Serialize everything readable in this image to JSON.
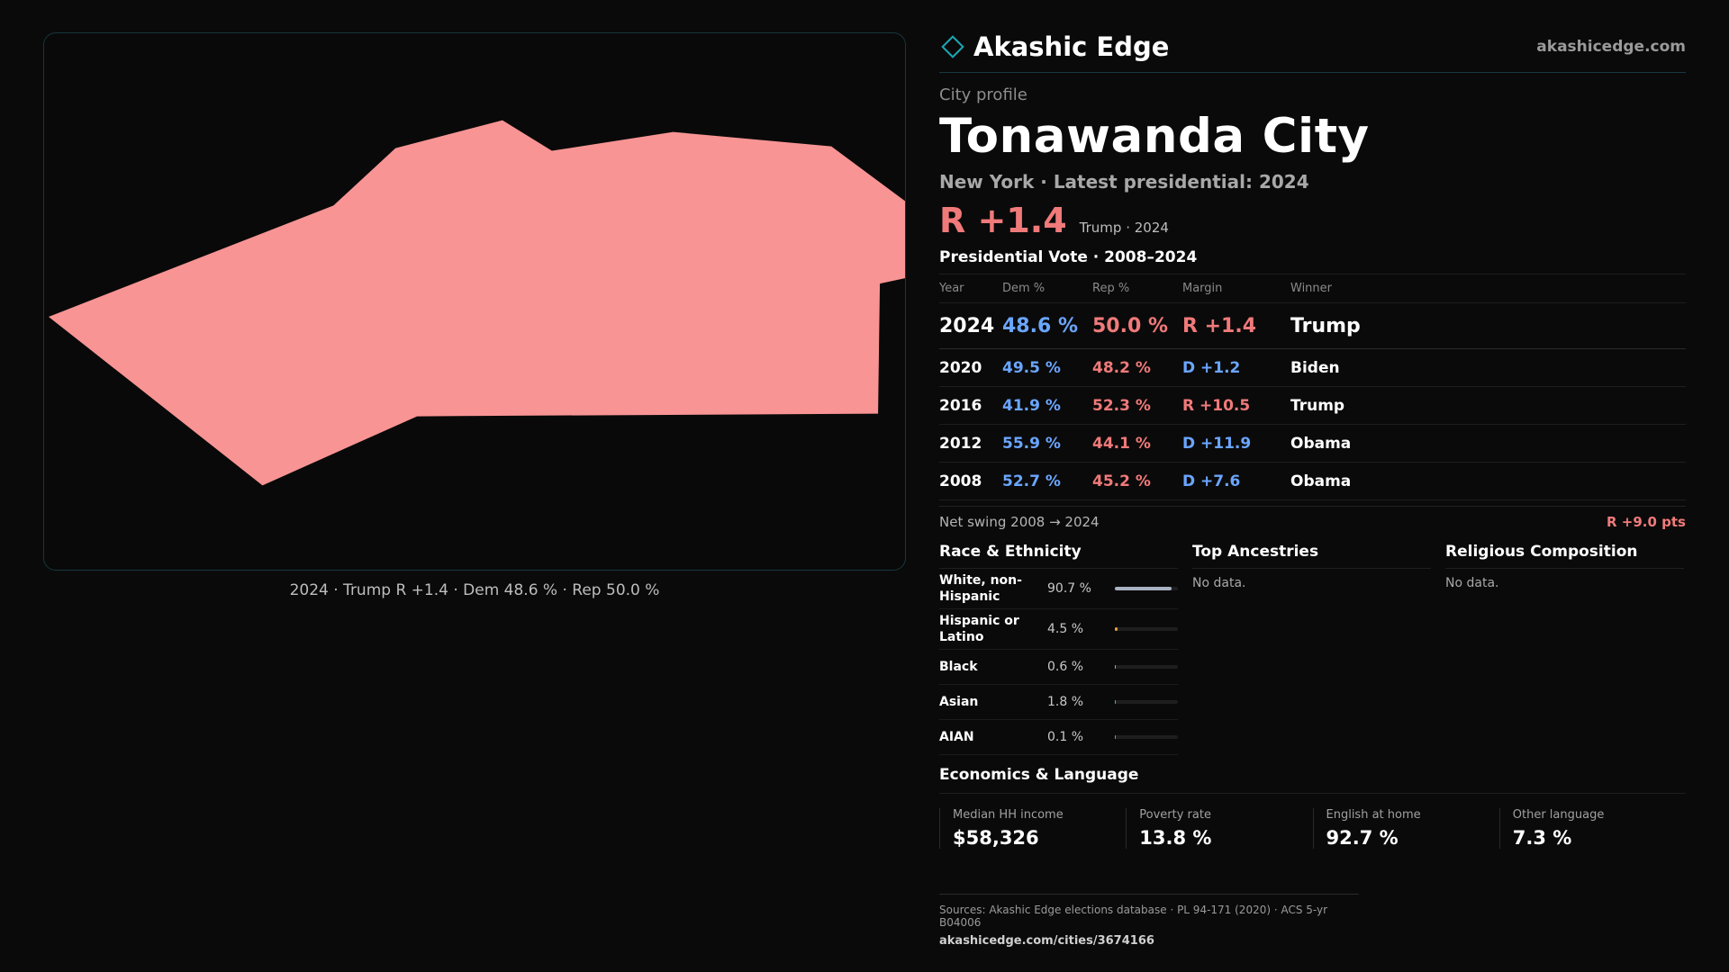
{
  "brand": {
    "name": "Akashic Edge",
    "site": "akashicedge.com",
    "accent": "#1aa8b5"
  },
  "profile": {
    "kicker": "City profile",
    "title": "Tonawanda City",
    "subtitle": "New York · Latest presidential: 2024",
    "headline_margin": "R +1.4",
    "headline_meta": "Trump · 2024"
  },
  "map": {
    "caption": "2024 · Trump R +1.4 · Dem 48.6 % · Rep 50.0 %",
    "fill_color": "#f99494"
  },
  "votes": {
    "title": "Presidential Vote · 2008–2024",
    "headers": [
      "Year",
      "Dem %",
      "Rep %",
      "Margin",
      "Winner"
    ],
    "rows": [
      {
        "year": "2024",
        "dem": "48.6 %",
        "rep": "50.0 %",
        "margin": "R +1.4",
        "margin_party": "rep",
        "winner": "Trump"
      },
      {
        "year": "2020",
        "dem": "49.5 %",
        "rep": "48.2 %",
        "margin": "D +1.2",
        "margin_party": "dem",
        "winner": "Biden"
      },
      {
        "year": "2016",
        "dem": "41.9 %",
        "rep": "52.3 %",
        "margin": "R +10.5",
        "margin_party": "rep",
        "winner": "Trump"
      },
      {
        "year": "2012",
        "dem": "55.9 %",
        "rep": "44.1 %",
        "margin": "D +11.9",
        "margin_party": "dem",
        "winner": "Obama"
      },
      {
        "year": "2008",
        "dem": "52.7 %",
        "rep": "45.2 %",
        "margin": "D +7.6",
        "margin_party": "dem",
        "winner": "Obama"
      }
    ],
    "swing_label": "Net swing 2008 → 2024",
    "swing_value": "R +9.0 pts"
  },
  "race": {
    "title": "Race & Ethnicity",
    "rows": [
      {
        "label": "White, non-Hispanic",
        "pct": "90.7 %",
        "share": 0.907,
        "color": "#a9b2c3"
      },
      {
        "label": "Hispanic or Latino",
        "pct": "4.5 %",
        "share": 0.045,
        "color": "#e0a24a"
      },
      {
        "label": "Black",
        "pct": "0.6 %",
        "share": 0.006,
        "color": "#b98cf0"
      },
      {
        "label": "Asian",
        "pct": "1.8 %",
        "share": 0.018,
        "color": "#2ec4a6"
      },
      {
        "label": "AIAN",
        "pct": "0.1 %",
        "share": 0.001,
        "color": "#e07070"
      }
    ]
  },
  "ancestries": {
    "title": "Top Ancestries",
    "empty": "No data."
  },
  "religion": {
    "title": "Religious Composition",
    "empty": "No data."
  },
  "economics": {
    "title": "Economics & Language",
    "cards": [
      {
        "label": "Median HH income",
        "value": "$58,326"
      },
      {
        "label": "Poverty rate",
        "value": "13.8 %"
      },
      {
        "label": "English at home",
        "value": "92.7 %"
      },
      {
        "label": "Other language",
        "value": "7.3 %"
      }
    ]
  },
  "footer": {
    "sources": "Sources: Akashic Edge elections database · PL 94-171 (2020) · ACS 5-yr B04006",
    "url": "akashicedge.com/cities/3674166"
  }
}
